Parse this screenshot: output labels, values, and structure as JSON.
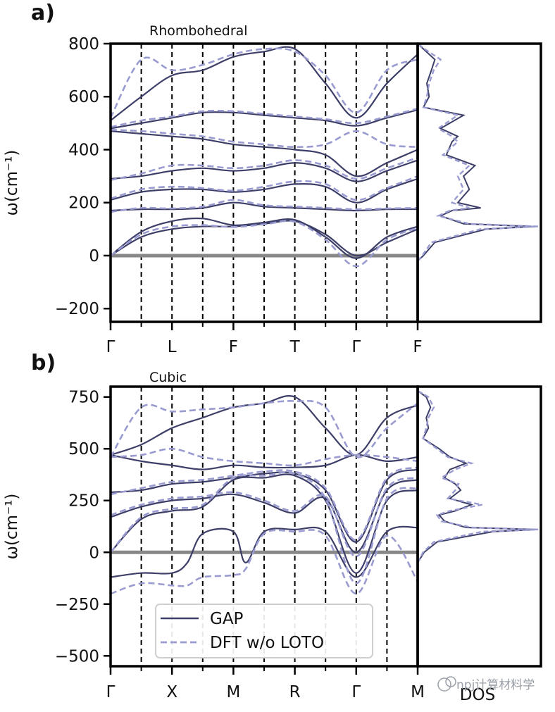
{
  "chart_data": [
    {
      "panel_label": "a)",
      "type": "line",
      "subtitle": "Rhombohedral",
      "ylabel": "ω(cm⁻¹)",
      "ylim": [
        -250,
        800
      ],
      "yticks": [
        -200,
        0,
        200,
        400,
        600,
        800
      ],
      "high_symmetry_points": [
        "Γ",
        "L",
        "F",
        "T",
        "Γ",
        "F"
      ],
      "path_x": [
        0,
        2,
        4,
        6,
        8,
        10
      ],
      "zero_line": 0,
      "legend": [],
      "series": [
        {
          "name": "GAP",
          "style": "solid",
          "x": [
            0,
            1,
            2,
            3,
            4,
            5,
            6,
            7,
            8,
            9,
            10
          ],
          "values": [
            0,
            70,
            100,
            110,
            110,
            120,
            130,
            80,
            0,
            50,
            100
          ]
        },
        {
          "name": "GAP",
          "style": "solid",
          "x": [
            0,
            1,
            2,
            3,
            4,
            5,
            6,
            7,
            8,
            9,
            10
          ],
          "values": [
            0,
            90,
            130,
            140,
            115,
            125,
            135,
            70,
            -10,
            70,
            110
          ]
        },
        {
          "name": "GAP",
          "style": "solid",
          "x": [
            0,
            1,
            2,
            3,
            4,
            5,
            6,
            7,
            8,
            9,
            10
          ],
          "values": [
            170,
            175,
            175,
            180,
            200,
            185,
            180,
            175,
            170,
            175,
            175
          ]
        },
        {
          "name": "GAP",
          "style": "solid",
          "x": [
            0,
            1,
            2,
            3,
            4,
            5,
            6,
            7,
            8,
            9,
            10
          ],
          "values": [
            210,
            240,
            250,
            250,
            240,
            250,
            270,
            260,
            200,
            250,
            290
          ]
        },
        {
          "name": "GAP",
          "style": "solid",
          "x": [
            0,
            1,
            2,
            3,
            4,
            5,
            6,
            7,
            8,
            9,
            10
          ],
          "values": [
            290,
            300,
            320,
            330,
            320,
            330,
            350,
            330,
            280,
            320,
            360
          ]
        },
        {
          "name": "GAP",
          "style": "solid",
          "x": [
            0,
            1,
            2,
            3,
            4,
            5,
            6,
            7,
            8,
            9,
            10
          ],
          "values": [
            470,
            460,
            450,
            440,
            420,
            410,
            400,
            380,
            300,
            350,
            400
          ]
        },
        {
          "name": "GAP",
          "style": "solid",
          "x": [
            0,
            1,
            2,
            3,
            4,
            5,
            6,
            7,
            8,
            9,
            10
          ],
          "values": [
            480,
            500,
            520,
            540,
            540,
            530,
            520,
            510,
            490,
            520,
            550
          ]
        },
        {
          "name": "GAP",
          "style": "solid",
          "x": [
            0,
            1,
            2,
            3,
            4,
            5,
            6,
            7,
            8,
            9,
            10
          ],
          "values": [
            510,
            600,
            680,
            700,
            750,
            770,
            780,
            650,
            520,
            650,
            760
          ]
        },
        {
          "name": "DFT w/o LOTO",
          "style": "dashed",
          "x": [
            0,
            1,
            2,
            3,
            4,
            5,
            6,
            7,
            8,
            9,
            10
          ],
          "values": [
            0,
            80,
            110,
            115,
            108,
            118,
            128,
            60,
            -40,
            60,
            105
          ]
        },
        {
          "name": "DFT w/o LOTO",
          "style": "dashed",
          "x": [
            0,
            1,
            2,
            3,
            4,
            5,
            6,
            7,
            8,
            9,
            10
          ],
          "values": [
            165,
            180,
            178,
            185,
            210,
            190,
            185,
            180,
            175,
            178,
            180
          ]
        },
        {
          "name": "DFT w/o LOTO",
          "style": "dashed",
          "x": [
            0,
            1,
            2,
            3,
            4,
            5,
            6,
            7,
            8,
            9,
            10
          ],
          "values": [
            215,
            250,
            260,
            255,
            245,
            260,
            280,
            270,
            210,
            255,
            300
          ]
        },
        {
          "name": "DFT w/o LOTO",
          "style": "dashed",
          "x": [
            0,
            1,
            2,
            3,
            4,
            5,
            6,
            7,
            8,
            9,
            10
          ],
          "values": [
            285,
            310,
            340,
            340,
            330,
            340,
            360,
            340,
            290,
            330,
            370
          ]
        },
        {
          "name": "DFT w/o LOTO",
          "style": "dashed",
          "x": [
            0,
            1,
            2,
            3,
            4,
            5,
            6,
            7,
            8,
            9,
            10
          ],
          "values": [
            475,
            470,
            460,
            450,
            430,
            420,
            410,
            420,
            470,
            420,
            410
          ]
        },
        {
          "name": "DFT w/o LOTO",
          "style": "dashed",
          "x": [
            0,
            1,
            2,
            3,
            4,
            5,
            6,
            7,
            8,
            9,
            10
          ],
          "values": [
            485,
            510,
            525,
            545,
            545,
            535,
            525,
            515,
            500,
            525,
            555
          ]
        },
        {
          "name": "DFT w/o LOTO",
          "style": "dashed",
          "x": [
            0,
            1,
            2,
            3,
            4,
            5,
            6,
            7,
            8,
            9,
            10
          ],
          "values": [
            520,
            740,
            700,
            720,
            760,
            780,
            770,
            680,
            540,
            700,
            740
          ]
        }
      ],
      "dos": {
        "label": "",
        "y": [
          -20,
          0,
          50,
          100,
          110,
          120,
          150,
          170,
          180,
          200,
          250,
          300,
          340,
          380,
          430,
          450,
          480,
          530,
          560,
          600,
          650,
          700,
          740,
          780,
          800
        ],
        "gap": [
          0,
          5,
          15,
          60,
          100,
          40,
          20,
          30,
          55,
          35,
          45,
          40,
          50,
          25,
          30,
          35,
          20,
          40,
          5,
          10,
          8,
          12,
          15,
          5,
          0
        ],
        "dft": [
          0,
          4,
          12,
          55,
          105,
          45,
          18,
          28,
          45,
          30,
          40,
          35,
          45,
          22,
          35,
          30,
          18,
          35,
          5,
          8,
          10,
          14,
          20,
          6,
          0
        ]
      }
    },
    {
      "panel_label": "b)",
      "type": "line",
      "subtitle": "Cubic",
      "ylabel": "ω(cm⁻¹)",
      "ylim": [
        -550,
        800
      ],
      "yticks": [
        -500,
        -250,
        0,
        250,
        500,
        750
      ],
      "high_symmetry_points": [
        "Γ",
        "X",
        "M",
        "R",
        "Γ",
        "M"
      ],
      "path_x": [
        0,
        2,
        4,
        6,
        8,
        10
      ],
      "zero_line": 0,
      "legend": [
        "GAP",
        "DFT w/o LOTO"
      ],
      "series": [
        {
          "name": "GAP",
          "style": "solid",
          "x": [
            0,
            1,
            2,
            2.5,
            3,
            4,
            4.4,
            5,
            6,
            7,
            8,
            9,
            10
          ],
          "values": [
            -120,
            -100,
            -100,
            -50,
            90,
            100,
            -50,
            100,
            110,
            100,
            -120,
            100,
            120
          ]
        },
        {
          "name": "GAP",
          "style": "solid",
          "x": [
            0,
            1,
            2,
            3,
            4,
            5,
            6,
            7,
            8,
            9,
            10
          ],
          "values": [
            0,
            160,
            200,
            220,
            350,
            360,
            370,
            250,
            -100,
            250,
            300
          ]
        },
        {
          "name": "GAP",
          "style": "solid",
          "x": [
            0,
            1,
            2,
            3,
            4,
            5,
            6,
            7,
            8,
            9,
            10
          ],
          "values": [
            170,
            220,
            250,
            260,
            280,
            240,
            190,
            260,
            0,
            300,
            350
          ]
        },
        {
          "name": "GAP",
          "style": "solid",
          "x": [
            0,
            1,
            2,
            3,
            4,
            5,
            6,
            7,
            8,
            9,
            10
          ],
          "values": [
            290,
            300,
            330,
            340,
            360,
            380,
            380,
            300,
            50,
            350,
            400
          ]
        },
        {
          "name": "GAP",
          "style": "solid",
          "x": [
            0,
            1,
            2,
            3,
            4,
            5,
            6,
            7,
            8,
            9,
            10
          ],
          "values": [
            470,
            440,
            420,
            400,
            420,
            410,
            410,
            420,
            470,
            440,
            460
          ]
        },
        {
          "name": "GAP",
          "style": "solid",
          "x": [
            0,
            1,
            2,
            3,
            4,
            5,
            6,
            7,
            8,
            9,
            10
          ],
          "values": [
            470,
            520,
            600,
            650,
            700,
            720,
            750,
            600,
            470,
            650,
            710
          ]
        },
        {
          "name": "DFT w/o LOTO",
          "style": "dashed",
          "x": [
            0,
            1,
            2,
            2.5,
            3,
            4,
            4.4,
            5,
            6,
            7,
            8,
            9,
            10
          ],
          "values": [
            -200,
            -150,
            -160,
            -160,
            -120,
            -110,
            -80,
            90,
            100,
            80,
            -200,
            80,
            -140
          ]
        },
        {
          "name": "DFT w/o LOTO",
          "style": "dashed",
          "x": [
            0,
            1,
            2,
            3,
            4,
            5,
            6,
            7,
            8,
            9,
            10
          ],
          "values": [
            0,
            170,
            210,
            230,
            360,
            370,
            380,
            260,
            -150,
            260,
            310
          ]
        },
        {
          "name": "DFT w/o LOTO",
          "style": "dashed",
          "x": [
            0,
            1,
            2,
            3,
            4,
            5,
            6,
            7,
            8,
            9,
            10
          ],
          "values": [
            180,
            230,
            260,
            270,
            290,
            250,
            200,
            270,
            -20,
            310,
            360
          ]
        },
        {
          "name": "DFT w/o LOTO",
          "style": "dashed",
          "x": [
            0,
            1,
            2,
            3,
            4,
            5,
            6,
            7,
            8,
            9,
            10
          ],
          "values": [
            280,
            310,
            340,
            350,
            370,
            390,
            390,
            310,
            60,
            360,
            410
          ]
        },
        {
          "name": "DFT w/o LOTO",
          "style": "dashed",
          "x": [
            0,
            1,
            2,
            3,
            4,
            5,
            6,
            7,
            8,
            9,
            10
          ],
          "values": [
            460,
            470,
            500,
            460,
            440,
            430,
            420,
            450,
            470,
            460,
            440
          ]
        },
        {
          "name": "DFT w/o LOTO",
          "style": "dashed",
          "x": [
            0,
            1,
            2,
            3,
            4,
            5,
            6,
            7,
            8,
            9,
            10
          ],
          "values": [
            460,
            700,
            680,
            690,
            700,
            720,
            730,
            700,
            460,
            600,
            720
          ]
        }
      ],
      "dos": {
        "label": "DOS",
        "y": [
          -50,
          0,
          50,
          100,
          110,
          120,
          150,
          180,
          200,
          230,
          260,
          300,
          330,
          360,
          400,
          430,
          460,
          500,
          550,
          600,
          650,
          700,
          750,
          780
        ],
        "gap": [
          0,
          6,
          18,
          70,
          110,
          45,
          25,
          20,
          35,
          50,
          30,
          40,
          35,
          25,
          30,
          45,
          30,
          20,
          5,
          10,
          8,
          12,
          8,
          0
        ],
        "dft": [
          0,
          5,
          15,
          60,
          112,
          50,
          22,
          18,
          30,
          60,
          28,
          35,
          38,
          22,
          35,
          50,
          28,
          18,
          5,
          8,
          10,
          15,
          10,
          0
        ]
      }
    }
  ],
  "watermark": {
    "text": "npj计算材料学"
  }
}
